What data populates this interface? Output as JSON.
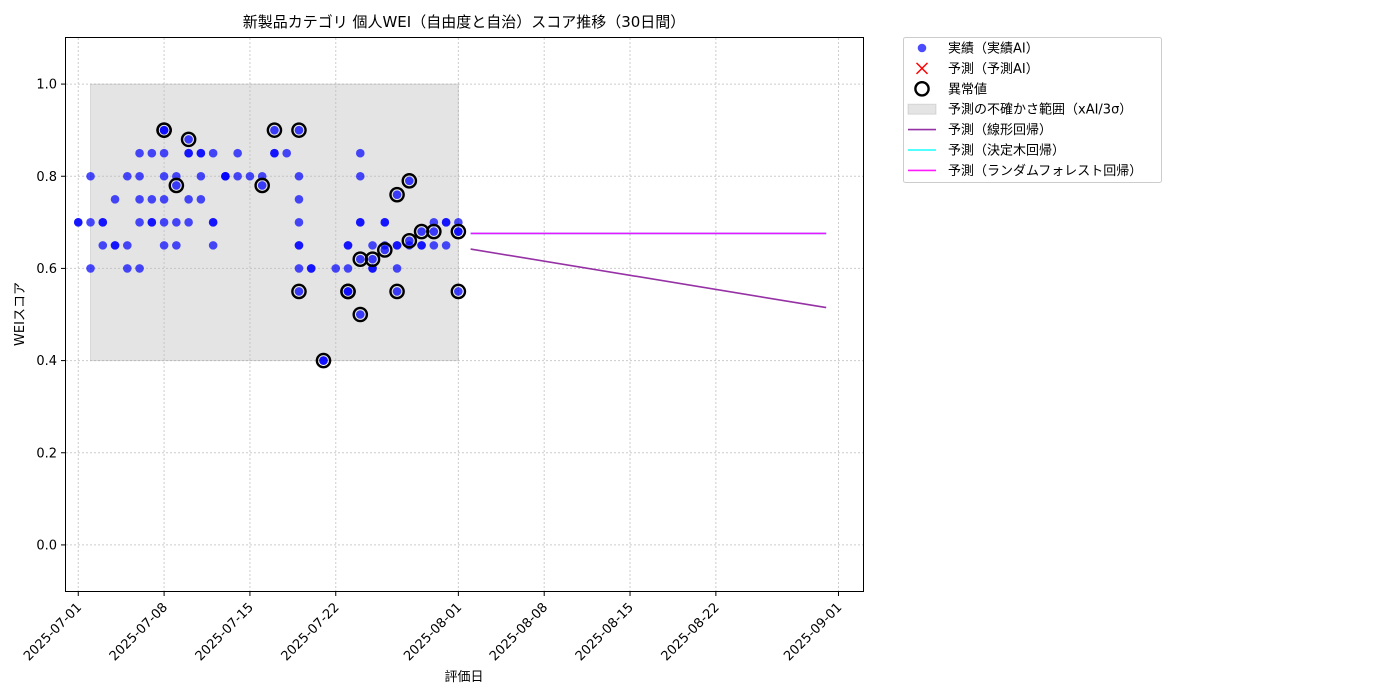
{
  "chart_data": {
    "type": "scatter",
    "title": "新製品カテゴリ 個人WEI（自由度と自治）スコア推移（30日間）",
    "xlabel": "評価日",
    "ylabel": "WEIスコア",
    "xlim": [
      "2025-06-30",
      "2025-09-03"
    ],
    "ylim": [
      -0.1,
      1.1
    ],
    "x_ticks": [
      "2025-07-01",
      "2025-07-08",
      "2025-07-15",
      "2025-07-22",
      "2025-08-01",
      "2025-08-08",
      "2025-08-15",
      "2025-08-22",
      "2025-09-01"
    ],
    "y_ticks": [
      0.0,
      0.2,
      0.4,
      0.6,
      0.8,
      1.0
    ],
    "y_tick_labels": [
      "0.0",
      "0.2",
      "0.4",
      "0.6",
      "0.8",
      "1.0"
    ],
    "grid": true,
    "legend_position": "outside-right-top",
    "colors": {
      "actual": "#0000ff",
      "forecast_marker": "#ff0000",
      "anomaly_edge": "#000000",
      "uncertainty_band": "#bbbbbb",
      "linear": "#8b1a9b",
      "tree": "#00ffff",
      "random_forest": "#ff00ff"
    },
    "uncertainty_band": {
      "x_start": "2025-07-02",
      "x_end": "2025-08-01",
      "y_low": 0.4,
      "y_high": 1.0
    },
    "series": [
      {
        "name": "実績（実績AI）",
        "kind": "scatter",
        "points": [
          [
            "2025-07-01",
            0.7
          ],
          [
            "2025-07-01",
            0.7
          ],
          [
            "2025-07-02",
            0.6
          ],
          [
            "2025-07-02",
            0.7
          ],
          [
            "2025-07-02",
            0.8
          ],
          [
            "2025-07-03",
            0.7
          ],
          [
            "2025-07-03",
            0.65
          ],
          [
            "2025-07-03",
            0.7
          ],
          [
            "2025-07-04",
            0.75
          ],
          [
            "2025-07-04",
            0.65
          ],
          [
            "2025-07-04",
            0.65
          ],
          [
            "2025-07-05",
            0.8
          ],
          [
            "2025-07-05",
            0.6
          ],
          [
            "2025-07-05",
            0.65
          ],
          [
            "2025-07-06",
            0.75
          ],
          [
            "2025-07-06",
            0.6
          ],
          [
            "2025-07-06",
            0.8
          ],
          [
            "2025-07-06",
            0.85
          ],
          [
            "2025-07-06",
            0.7
          ],
          [
            "2025-07-07",
            0.7
          ],
          [
            "2025-07-07",
            0.7
          ],
          [
            "2025-07-07",
            0.75
          ],
          [
            "2025-07-07",
            0.85
          ],
          [
            "2025-07-08",
            0.8
          ],
          [
            "2025-07-08",
            0.65
          ],
          [
            "2025-07-08",
            0.7
          ],
          [
            "2025-07-08",
            0.85
          ],
          [
            "2025-07-08",
            0.75
          ],
          [
            "2025-07-09",
            0.8
          ],
          [
            "2025-07-09",
            0.7
          ],
          [
            "2025-07-09",
            0.65
          ],
          [
            "2025-07-10",
            0.7
          ],
          [
            "2025-07-10",
            0.85
          ],
          [
            "2025-07-10",
            0.75
          ],
          [
            "2025-07-10",
            0.85
          ],
          [
            "2025-07-11",
            0.75
          ],
          [
            "2025-07-11",
            0.85
          ],
          [
            "2025-07-11",
            0.8
          ],
          [
            "2025-07-11",
            0.85
          ],
          [
            "2025-07-12",
            0.7
          ],
          [
            "2025-07-12",
            0.65
          ],
          [
            "2025-07-12",
            0.85
          ],
          [
            "2025-07-12",
            0.7
          ],
          [
            "2025-07-13",
            0.8
          ],
          [
            "2025-07-13",
            0.8
          ],
          [
            "2025-07-13",
            0.8
          ],
          [
            "2025-07-14",
            0.85
          ],
          [
            "2025-07-14",
            0.8
          ],
          [
            "2025-07-15",
            0.8
          ],
          [
            "2025-07-16",
            0.8
          ],
          [
            "2025-07-17",
            0.85
          ],
          [
            "2025-07-17",
            0.85
          ],
          [
            "2025-07-18",
            0.85
          ],
          [
            "2025-07-19",
            0.8
          ],
          [
            "2025-07-19",
            0.75
          ],
          [
            "2025-07-19",
            0.7
          ],
          [
            "2025-07-19",
            0.65
          ],
          [
            "2025-07-19",
            0.6
          ],
          [
            "2025-07-19",
            0.65
          ],
          [
            "2025-07-20",
            0.6
          ],
          [
            "2025-07-20",
            0.6
          ],
          [
            "2025-07-21",
            0.4
          ],
          [
            "2025-07-22",
            0.6
          ],
          [
            "2025-07-23",
            0.65
          ],
          [
            "2025-07-23",
            0.6
          ],
          [
            "2025-07-23",
            0.65
          ],
          [
            "2025-07-24",
            0.7
          ],
          [
            "2025-07-24",
            0.85
          ],
          [
            "2025-07-24",
            0.8
          ],
          [
            "2025-07-24",
            0.7
          ],
          [
            "2025-07-25",
            0.6
          ],
          [
            "2025-07-25",
            0.65
          ],
          [
            "2025-07-25",
            0.6
          ],
          [
            "2025-07-26",
            0.65
          ],
          [
            "2025-07-26",
            0.7
          ],
          [
            "2025-07-26",
            0.7
          ],
          [
            "2025-07-27",
            0.6
          ],
          [
            "2025-07-27",
            0.65
          ],
          [
            "2025-07-27",
            0.65
          ],
          [
            "2025-07-28",
            0.65
          ],
          [
            "2025-07-29",
            0.65
          ],
          [
            "2025-07-29",
            0.65
          ],
          [
            "2025-07-30",
            0.7
          ],
          [
            "2025-07-30",
            0.65
          ],
          [
            "2025-07-31",
            0.7
          ],
          [
            "2025-07-31",
            0.7
          ],
          [
            "2025-07-31",
            0.65
          ],
          [
            "2025-08-01",
            0.7
          ],
          [
            "2025-08-01",
            0.68
          ]
        ]
      },
      {
        "name": "予測（予測AI）",
        "kind": "marker",
        "points": []
      },
      {
        "name": "異常値",
        "kind": "anomaly",
        "points": [
          [
            "2025-07-08",
            0.9
          ],
          [
            "2025-07-08",
            0.9
          ],
          [
            "2025-07-09",
            0.78
          ],
          [
            "2025-07-10",
            0.88
          ],
          [
            "2025-07-16",
            0.78
          ],
          [
            "2025-07-17",
            0.9
          ],
          [
            "2025-07-19",
            0.9
          ],
          [
            "2025-07-19",
            0.55
          ],
          [
            "2025-07-21",
            0.4
          ],
          [
            "2025-07-23",
            0.55
          ],
          [
            "2025-07-23",
            0.55
          ],
          [
            "2025-07-24",
            0.5
          ],
          [
            "2025-07-24",
            0.62
          ],
          [
            "2025-07-25",
            0.62
          ],
          [
            "2025-07-26",
            0.64
          ],
          [
            "2025-07-27",
            0.55
          ],
          [
            "2025-07-27",
            0.76
          ],
          [
            "2025-07-28",
            0.79
          ],
          [
            "2025-07-28",
            0.66
          ],
          [
            "2025-07-29",
            0.68
          ],
          [
            "2025-07-30",
            0.68
          ],
          [
            "2025-08-01",
            0.68
          ],
          [
            "2025-08-01",
            0.55
          ]
        ]
      },
      {
        "name": "予測の不確かさ範囲（xAI/3σ）",
        "kind": "band",
        "points": []
      },
      {
        "name": "予測（線形回帰）",
        "kind": "line",
        "points": [
          [
            "2025-08-02",
            0.642
          ],
          [
            "2025-08-31",
            0.515
          ]
        ]
      },
      {
        "name": "予測（決定木回帰）",
        "kind": "line",
        "points": [
          [
            "2025-08-02",
            0.676
          ],
          [
            "2025-08-31",
            0.676
          ]
        ]
      },
      {
        "name": "予測（ランダムフォレスト回帰）",
        "kind": "line",
        "points": [
          [
            "2025-08-02",
            0.676
          ],
          [
            "2025-08-31",
            0.676
          ]
        ]
      }
    ]
  }
}
